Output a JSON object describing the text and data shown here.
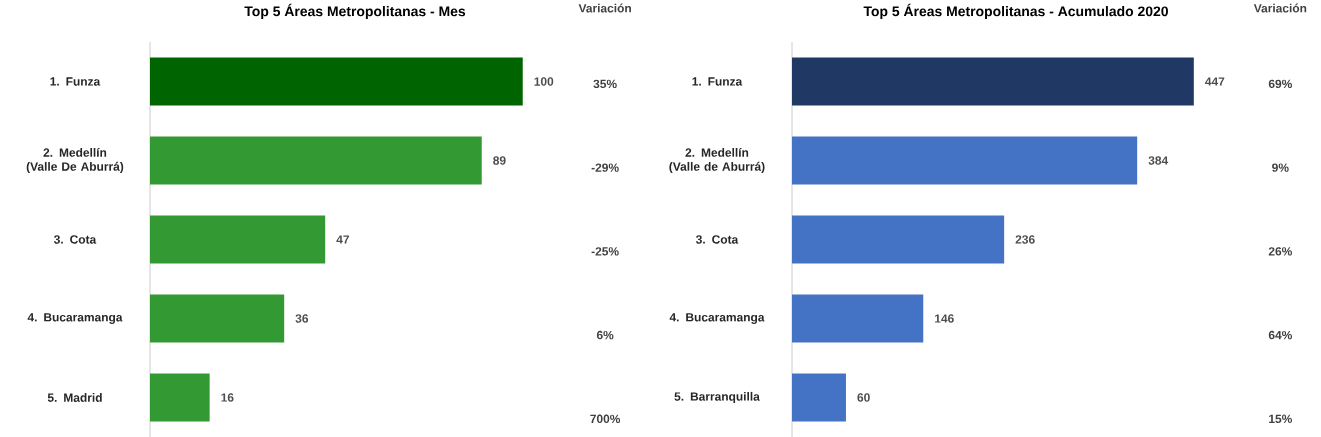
{
  "chart_data": [
    {
      "type": "bar",
      "orientation": "horizontal",
      "title": "Top 5 Áreas Metropolitanas - Mes",
      "categories": [
        "1. Funza",
        "2. Medellín (Valle De Aburrá)",
        "3. Cota",
        "4. Bucaramanga",
        "5. Madrid"
      ],
      "values": [
        100,
        89,
        47,
        36,
        16
      ],
      "colors": [
        "#006400",
        "#339933",
        "#339933",
        "#339933",
        "#339933"
      ],
      "data_labels": true,
      "tick_labels": "y",
      "annotations": [
        "Variación",
        "35%",
        "-29%",
        "-25%",
        "6%",
        "700%"
      ]
    },
    {
      "type": "bar",
      "orientation": "horizontal",
      "title": "Top 5 Áreas Metropolitanas - Acumulado 2020",
      "categories": [
        "1. Funza",
        "2. Medellín (Valle de Aburrá)",
        "3. Cota",
        "4. Bucaramanga",
        "5. Barranquilla"
      ],
      "values": [
        447,
        384,
        236,
        146,
        60
      ],
      "colors": [
        "#1f3864",
        "#4472c4",
        "#4472c4",
        "#4472c4",
        "#4472c4"
      ],
      "data_labels": true,
      "tick_labels": "y",
      "annotations": [
        "Variación",
        "69%",
        "9%",
        "26%",
        "64%",
        "15%"
      ]
    }
  ]
}
